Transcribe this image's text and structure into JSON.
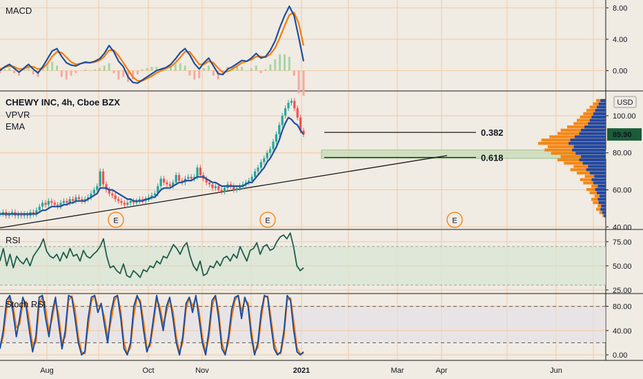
{
  "chart_data": [
    {
      "panel": "macd",
      "type": "line",
      "title": "MACD",
      "y_ticks": [
        "8.00",
        "4.00",
        "0.00"
      ],
      "ylim": [
        -2.5,
        9
      ],
      "series": [
        {
          "color": "#1f4e9e",
          "values": [
            0.0,
            0.5,
            0.8,
            0.3,
            -0.2,
            0.3,
            0.8,
            0.2,
            -0.3,
            0.5,
            1.5,
            2.5,
            2.8,
            1.8,
            1.0,
            0.7,
            0.6,
            0.9,
            1.1,
            1.0,
            1.2,
            1.5,
            2.2,
            3.2,
            2.4,
            1.2,
            0.5,
            -0.8,
            -1.5,
            -1.6,
            -1.2,
            -0.8,
            -0.4,
            0.0,
            0.2,
            0.4,
            0.8,
            1.5,
            2.3,
            2.8,
            2.0,
            0.9,
            0.2,
            1.0,
            1.6,
            0.6,
            -0.4,
            -0.5,
            0.2,
            0.5,
            0.9,
            1.3,
            1.2,
            1.6,
            2.2,
            1.6,
            1.8,
            2.6,
            3.8,
            5.5,
            7.0,
            8.2,
            7.0,
            4.2,
            1.2
          ]
        },
        {
          "color": "#f57c00",
          "values": [
            0.2,
            0.4,
            0.6,
            0.5,
            0.2,
            0.2,
            0.5,
            0.5,
            0.2,
            0.3,
            0.9,
            1.8,
            2.4,
            2.3,
            1.7,
            1.1,
            0.8,
            0.9,
            1.0,
            1.0,
            1.1,
            1.3,
            1.8,
            2.6,
            2.6,
            1.9,
            1.0,
            0.1,
            -0.8,
            -1.3,
            -1.3,
            -1.0,
            -0.7,
            -0.3,
            0.0,
            0.3,
            0.5,
            1.0,
            1.7,
            2.4,
            2.4,
            1.6,
            0.8,
            0.8,
            1.2,
            1.0,
            0.3,
            -0.2,
            -0.1,
            0.2,
            0.6,
            1.0,
            1.2,
            1.4,
            1.8,
            1.8,
            1.7,
            2.1,
            2.9,
            4.2,
            5.7,
            7.1,
            7.4,
            6.0,
            3.2
          ]
        }
      ]
    },
    {
      "panel": "price",
      "type": "candlestick",
      "title": "CHEWY INC, 4h, Cboe BZX",
      "indicators": [
        "VPVR",
        "EMA"
      ],
      "currency": "USD",
      "y_ticks": [
        "100.00",
        "80.00",
        "60.00",
        "40.00"
      ],
      "ylim": [
        39,
        113
      ],
      "last_price": "89.90",
      "closes": [
        47,
        48,
        46,
        47,
        48,
        46,
        47,
        46,
        47,
        46,
        48,
        47,
        49,
        51,
        53,
        52,
        54,
        53,
        52,
        51,
        53,
        54,
        53,
        55,
        54,
        56,
        55,
        54,
        55,
        56,
        58,
        60,
        62,
        70,
        63,
        60,
        58,
        57,
        55,
        54,
        53,
        52,
        53,
        54,
        53,
        54,
        55,
        54,
        55,
        56,
        57,
        58,
        62,
        66,
        64,
        63,
        62,
        64,
        68,
        65,
        64,
        66,
        67,
        66,
        67,
        72,
        68,
        66,
        64,
        63,
        61,
        62,
        60,
        59,
        61,
        63,
        62,
        60,
        61,
        62,
        63,
        64,
        65,
        67,
        70,
        72,
        75,
        77,
        80,
        82,
        86,
        90,
        95,
        100,
        104,
        107,
        108,
        104,
        99,
        92,
        90
      ],
      "ema": [
        47,
        47,
        47,
        47,
        47,
        47,
        47,
        47,
        47,
        47,
        47,
        47,
        47,
        48,
        49,
        49,
        50,
        51,
        51,
        51,
        51,
        52,
        52,
        53,
        53,
        54,
        54,
        54,
        54,
        55,
        56,
        57,
        58,
        61,
        61,
        61,
        60,
        60,
        59,
        58,
        57,
        56,
        55,
        55,
        54,
        54,
        54,
        54,
        55,
        55,
        56,
        56,
        58,
        60,
        61,
        61,
        61,
        62,
        63,
        64,
        64,
        65,
        65,
        65,
        66,
        67,
        67,
        67,
        66,
        65,
        64,
        64,
        63,
        62,
        62,
        62,
        62,
        62,
        62,
        62,
        62,
        63,
        64,
        64,
        66,
        68,
        70,
        72,
        75,
        77,
        80,
        83,
        87,
        92,
        96,
        99,
        98,
        96,
        95,
        92,
        90
      ],
      "fib_levels": [
        {
          "label": "0.382",
          "price": 91
        },
        {
          "label": "0.618",
          "price": 77.5
        }
      ],
      "zone": {
        "from": 77,
        "to": 81.5
      },
      "trendline": [
        {
          "price": 39.5
        },
        {
          "price": 78.5
        }
      ],
      "earnings_markers": [
        "E",
        "E",
        "E"
      ],
      "volume_profile": [
        2,
        4,
        6,
        5,
        8,
        9,
        7,
        10,
        12,
        9,
        14,
        16,
        13,
        18,
        22,
        20,
        26,
        30,
        28,
        34,
        38,
        36,
        42,
        40,
        35,
        30,
        28,
        24,
        20,
        18,
        16,
        14,
        12,
        10,
        8,
        6
      ],
      "volume_profile_range": [
        45,
        109
      ]
    },
    {
      "panel": "rsi",
      "type": "line",
      "title": "RSI",
      "y_ticks": [
        "75.00",
        "50.00",
        "25.00"
      ],
      "ylim": [
        22,
        87
      ],
      "bands": [
        30,
        70
      ],
      "values": [
        55,
        68,
        50,
        62,
        48,
        60,
        55,
        52,
        58,
        50,
        60,
        65,
        70,
        78,
        65,
        60,
        58,
        62,
        55,
        64,
        58,
        68,
        60,
        62,
        55,
        66,
        60,
        58,
        62,
        65,
        70,
        78,
        60,
        48,
        50,
        45,
        42,
        52,
        40,
        38,
        45,
        42,
        38,
        46,
        44,
        50,
        48,
        55,
        52,
        60,
        58,
        65,
        72,
        68,
        62,
        70,
        74,
        60,
        50,
        45,
        55,
        40,
        42,
        50,
        48,
        55,
        50,
        58,
        60,
        55,
        62,
        58,
        70,
        62,
        55,
        66,
        68,
        74,
        62,
        70,
        72,
        66,
        68,
        75,
        80,
        82,
        78,
        84,
        70,
        50,
        45,
        48
      ]
    },
    {
      "panel": "stoch",
      "type": "line",
      "title": "Stoch RSI",
      "y_ticks": [
        "80.00",
        "40.00",
        "0.00"
      ],
      "ylim": [
        -8,
        100
      ],
      "bands": [
        20,
        80
      ],
      "series": [
        {
          "color": "#1f4e9e",
          "values": [
            10,
            40,
            90,
            98,
            70,
            30,
            60,
            95,
            80,
            40,
            5,
            30,
            95,
            98,
            60,
            30,
            70,
            95,
            50,
            10,
            40,
            98,
            95,
            60,
            20,
            0,
            5,
            60,
            95,
            98,
            70,
            85,
            50,
            20,
            70,
            95,
            98,
            60,
            10,
            0,
            20,
            80,
            98,
            85,
            40,
            5,
            20,
            60,
            98,
            70,
            40,
            80,
            95,
            60,
            20,
            0,
            30,
            85,
            95,
            70,
            98,
            60,
            20,
            0,
            40,
            90,
            98,
            60,
            10,
            0,
            30,
            75,
            95,
            98,
            60,
            95,
            80,
            30,
            0,
            20,
            70,
            98,
            95,
            50,
            10,
            0,
            5,
            40,
            98,
            90,
            40,
            5,
            0,
            5
          ]
        },
        {
          "color": "#f57c00",
          "values": [
            12,
            30,
            75,
            96,
            82,
            45,
            50,
            85,
            88,
            55,
            15,
            20,
            80,
            98,
            75,
            40,
            60,
            90,
            65,
            20,
            30,
            90,
            97,
            75,
            30,
            5,
            2,
            45,
            88,
            98,
            80,
            82,
            62,
            30,
            55,
            88,
            98,
            72,
            20,
            2,
            12,
            65,
            95,
            90,
            55,
            12,
            14,
            50,
            92,
            80,
            50,
            70,
            92,
            72,
            30,
            4,
            20,
            75,
            95,
            80,
            95,
            72,
            30,
            4,
            28,
            80,
            97,
            72,
            20,
            2,
            20,
            62,
            90,
            98,
            72,
            90,
            86,
            42,
            4,
            12,
            58,
            95,
            97,
            62,
            20,
            2,
            2,
            30,
            90,
            94,
            55,
            12,
            1,
            3
          ]
        }
      ]
    }
  ],
  "x_axis": {
    "labels": [
      "Aug",
      "Oct",
      "Nov",
      "2021",
      "Mar",
      "Apr",
      "Jun"
    ]
  }
}
